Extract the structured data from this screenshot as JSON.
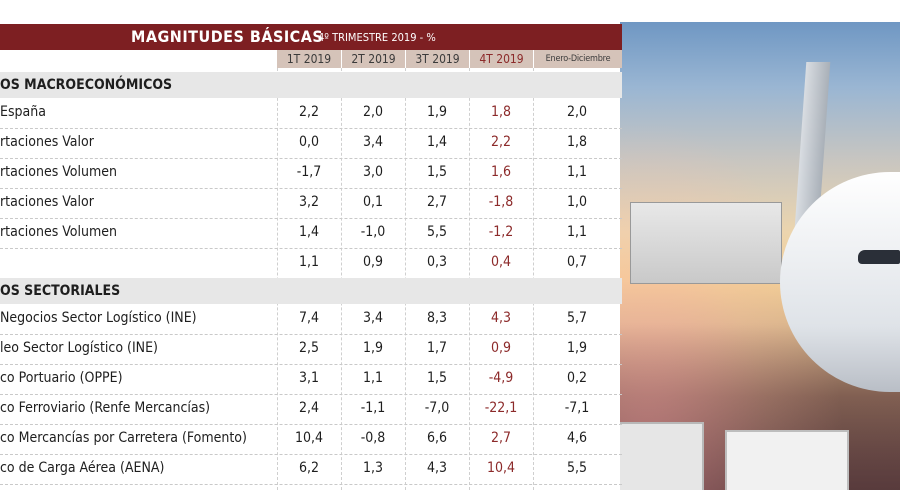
{
  "header": {
    "title": "MAGNITUDES BÁSICAS",
    "subtitle": "4º TRIMESTRE 2019 - %",
    "columns": [
      "1T 2019",
      "2T 2019",
      "3T 2019",
      "4T 2019",
      "Enero-Diciembre"
    ]
  },
  "colors": {
    "header_bg": "#7d1f22",
    "column_header_bg": "#d5c3b9",
    "q4_text": "#8c2a2a",
    "section_bg": "#e7e7e7"
  },
  "sections": [
    {
      "title": "OS MACROECONÓMICOS",
      "rows": [
        {
          "label": "España",
          "values": [
            "2,2",
            "2,0",
            "1,9",
            "1,8",
            "2,0"
          ]
        },
        {
          "label": "rtaciones Valor",
          "values": [
            "0,0",
            "3,4",
            "1,4",
            "2,2",
            "1,8"
          ]
        },
        {
          "label": "rtaciones Volumen",
          "values": [
            "-1,7",
            "3,0",
            "1,5",
            "1,6",
            "1,1"
          ]
        },
        {
          "label": "rtaciones Valor",
          "values": [
            "3,2",
            "0,1",
            "2,7",
            "-1,8",
            "1,0"
          ]
        },
        {
          "label": "rtaciones Volumen",
          "values": [
            "1,4",
            "-1,0",
            "5,5",
            "-1,2",
            "1,1"
          ]
        },
        {
          "label": "",
          "values": [
            "1,1",
            "0,9",
            "0,3",
            "0,4",
            "0,7"
          ]
        }
      ]
    },
    {
      "title": "OS SECTORIALES",
      "rows": [
        {
          "label": "Negocios Sector Logístico (INE)",
          "values": [
            "7,4",
            "3,4",
            "8,3",
            "4,3",
            "5,7"
          ]
        },
        {
          "label": "leo Sector Logístico (INE)",
          "values": [
            "2,5",
            "1,9",
            "1,7",
            "0,9",
            "1,9"
          ]
        },
        {
          "label": "co Portuario (OPPE)",
          "values": [
            "3,1",
            "1,1",
            "1,5",
            "-4,9",
            "0,2"
          ]
        },
        {
          "label": "co Ferroviario (Renfe Mercancías)",
          "values": [
            "2,4",
            "-1,1",
            "-7,0",
            "-22,1",
            "-7,1"
          ]
        },
        {
          "label": "co Mercancías por Carretera (Fomento)",
          "values": [
            "10,4",
            "-0,8",
            "6,6",
            "2,7",
            "4,6"
          ]
        },
        {
          "label": "co de Carga Aérea (AENA)",
          "values": [
            "6,2",
            "1,3",
            "4,3",
            "10,4",
            "5,5"
          ]
        }
      ]
    }
  ]
}
